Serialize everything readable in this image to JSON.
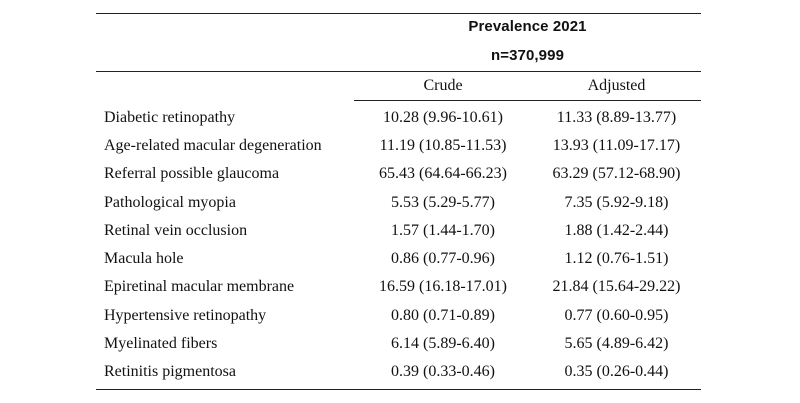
{
  "header": {
    "title": "Prevalence 2021",
    "subtitle": "n=370,999",
    "columns": [
      "Crude",
      "Adjusted"
    ]
  },
  "rows": [
    {
      "label": "Diabetic retinopathy",
      "crude": "10.28 (9.96-10.61)",
      "adjusted": "11.33 (8.89-13.77)"
    },
    {
      "label": "Age-related macular degeneration",
      "crude": "11.19 (10.85-11.53)",
      "adjusted": "13.93 (11.09-17.17)"
    },
    {
      "label": "Referral possible glaucoma",
      "crude": "65.43 (64.64-66.23)",
      "adjusted": "63.29 (57.12-68.90)"
    },
    {
      "label": "Pathological myopia",
      "crude": "5.53 (5.29-5.77)",
      "adjusted": "7.35 (5.92-9.18)"
    },
    {
      "label": "Retinal vein occlusion",
      "crude": "1.57 (1.44-1.70)",
      "adjusted": "1.88 (1.42-2.44)"
    },
    {
      "label": "Macula hole",
      "crude": "0.86 (0.77-0.96)",
      "adjusted": "1.12 (0.76-1.51)"
    },
    {
      "label": "Epiretinal macular membrane",
      "crude": "16.59 (16.18-17.01)",
      "adjusted": "21.84 (15.64-29.22)"
    },
    {
      "label": "Hypertensive retinopathy",
      "crude": "0.80 (0.71-0.89)",
      "adjusted": "0.77 (0.60-0.95)"
    },
    {
      "label": "Myelinated fibers",
      "crude": "6.14 (5.89-6.40)",
      "adjusted": "5.65 (4.89-6.42)"
    },
    {
      "label": "Retinitis pigmentosa",
      "crude": "0.39 (0.33-0.46)",
      "adjusted": "0.35 (0.26-0.44)"
    }
  ]
}
